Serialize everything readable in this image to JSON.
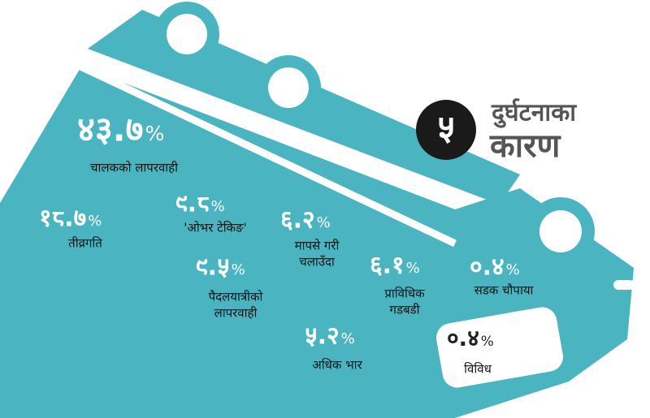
{
  "header": {
    "number": "५",
    "title_line1": "दुर्घटनाका",
    "title_line2": "कारण"
  },
  "items": [
    {
      "value": "४३.७",
      "unit": "%",
      "label": [
        "चालकको लापरवाही"
      ]
    },
    {
      "value": "१८.७",
      "unit": "%",
      "label": [
        "तीव्रगति"
      ]
    },
    {
      "value": "९.८",
      "unit": "%",
      "label": [
        "'ओभर टेकिङ'"
      ]
    },
    {
      "value": "६.२",
      "unit": "%",
      "label": [
        "मापसे गरी",
        "चलाउँदा"
      ]
    },
    {
      "value": "९.५",
      "unit": "%",
      "label": [
        "पैदलयात्रीको",
        "लापरवाही"
      ]
    },
    {
      "value": "६.१",
      "unit": "%",
      "label": [
        "प्राविधिक",
        "गडबडी"
      ]
    },
    {
      "value": "५.२",
      "unit": "%",
      "label": [
        "अधिक भार"
      ]
    },
    {
      "value": "०.४",
      "unit": "%",
      "label": [
        "सडक चौपाया"
      ]
    },
    {
      "value": "०.४",
      "unit": "%",
      "label": [
        "विविध"
      ]
    }
  ]
}
